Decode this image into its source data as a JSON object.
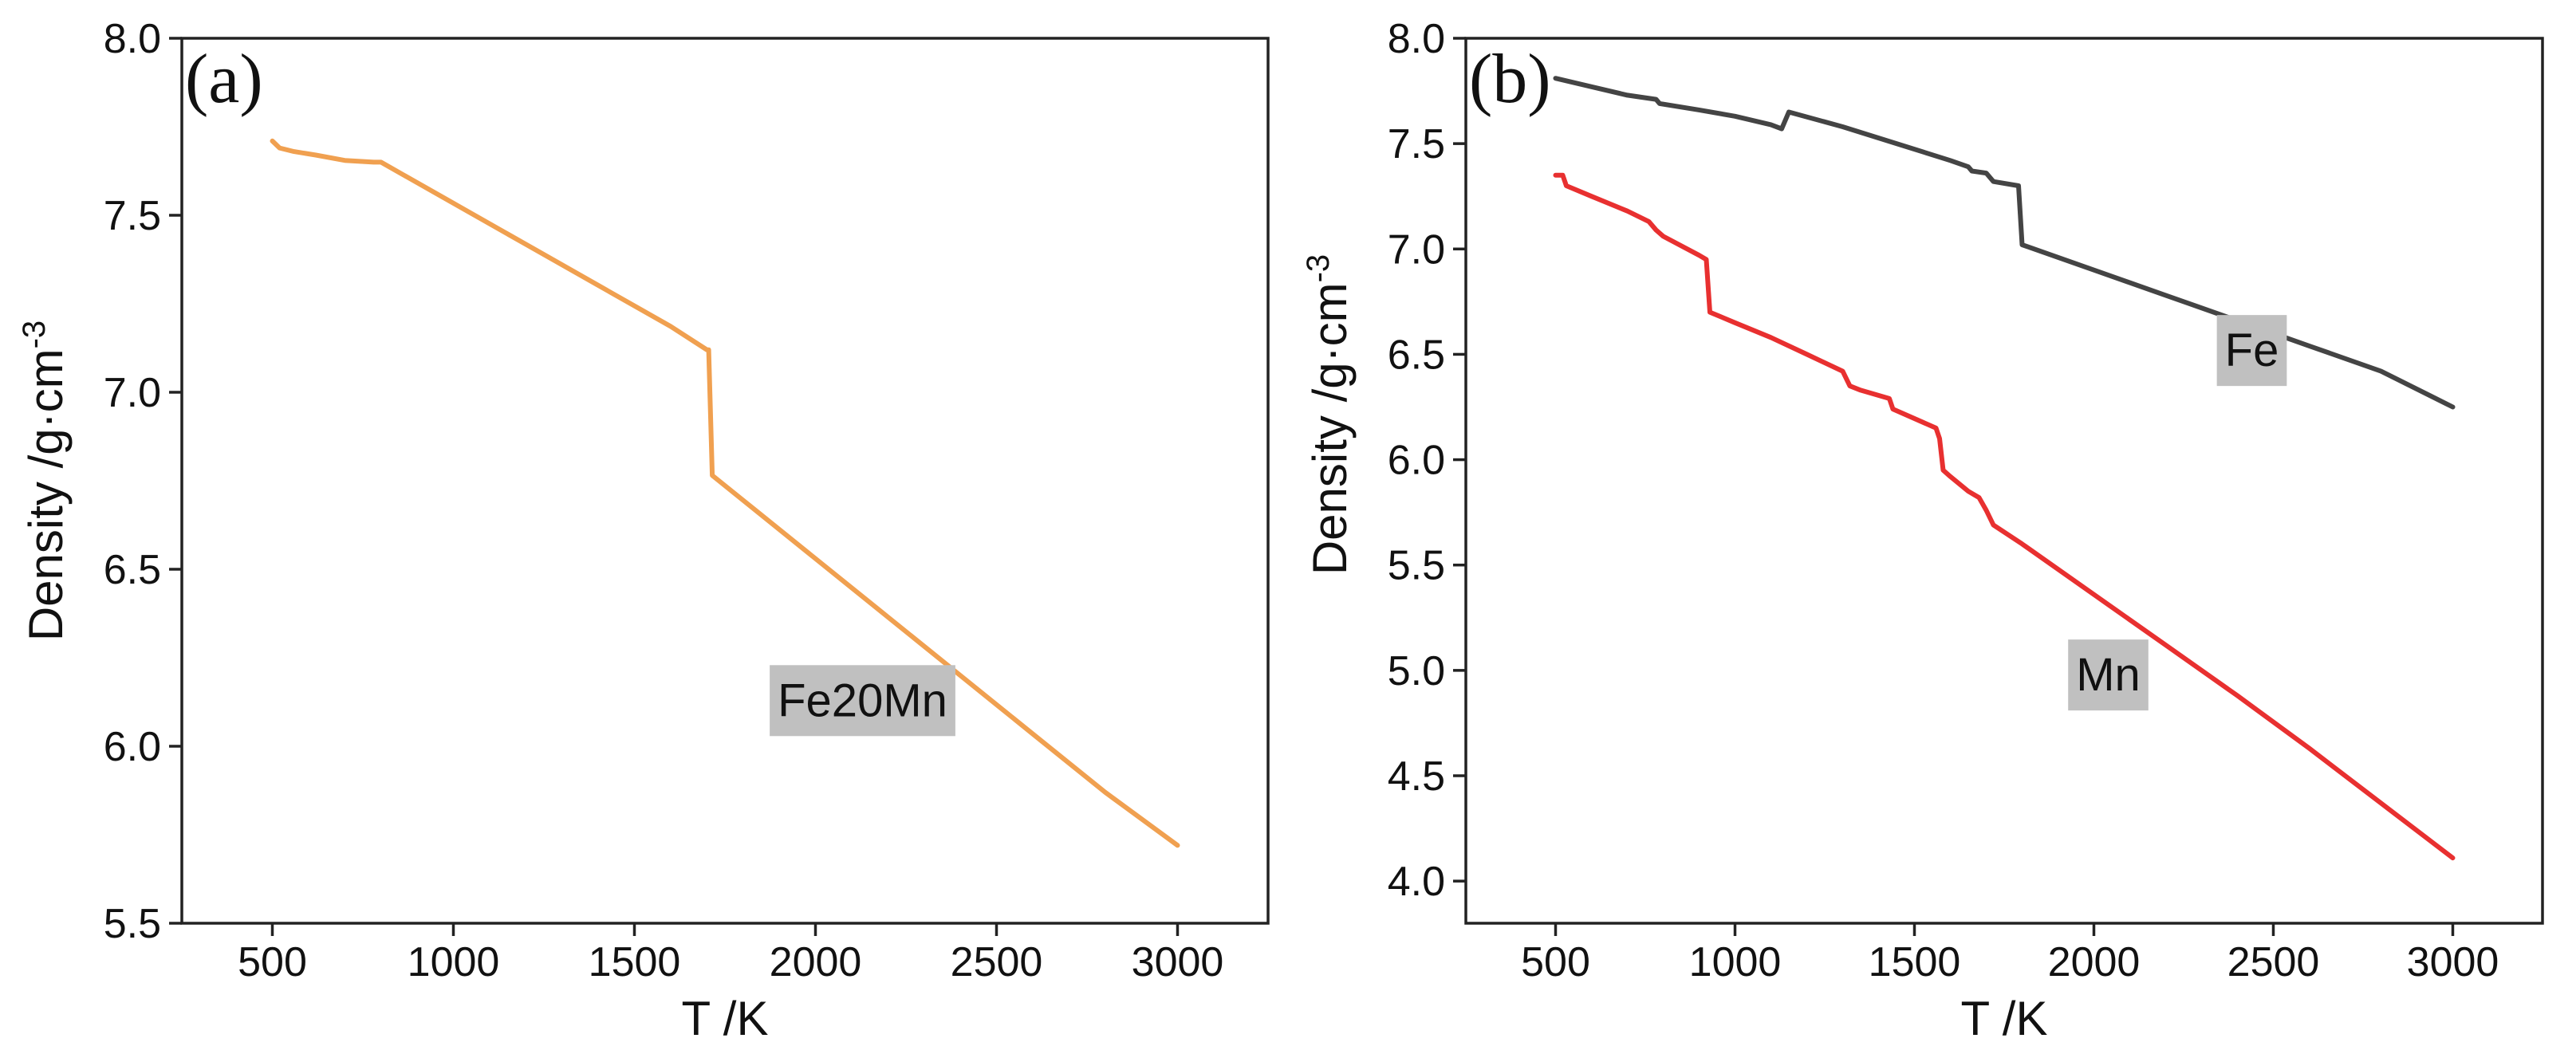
{
  "chart_data": [
    {
      "type": "line",
      "panel_label": "(a)",
      "xlabel": "T /K",
      "ylabel": "Density /g·cm",
      "ylabel_sup": "-3",
      "xlim": [
        250,
        3250
      ],
      "ylim": [
        5.5,
        8.0
      ],
      "xticks": [
        500,
        1000,
        1500,
        2000,
        2500,
        3000
      ],
      "yticks": [
        5.5,
        6.0,
        6.5,
        7.0,
        7.5,
        8.0
      ],
      "x_tick_labels": [
        "500",
        "1000",
        "1500",
        "2000",
        "2500",
        "3000"
      ],
      "y_tick_labels": [
        "5.5",
        "6.0",
        "6.5",
        "7.0",
        "7.5",
        "8.0"
      ],
      "series": [
        {
          "name": "Fe20Mn",
          "color": "#f0a050",
          "label_at": [
            2130,
            6.13
          ],
          "x": [
            500,
            520,
            560,
            620,
            700,
            780,
            800,
            1000,
            1200,
            1400,
            1600,
            1700,
            1705,
            1715,
            1800,
            2000,
            2200,
            2400,
            2600,
            2800,
            3000
          ],
          "y": [
            7.71,
            7.69,
            7.68,
            7.67,
            7.655,
            7.65,
            7.65,
            7.534,
            7.418,
            7.302,
            7.186,
            7.12,
            7.12,
            6.765,
            6.695,
            6.53,
            6.365,
            6.2,
            6.035,
            5.87,
            5.72
          ]
        }
      ]
    },
    {
      "type": "line",
      "panel_label": "(b)",
      "xlabel": "T /K",
      "ylabel": "Density /g·cm",
      "ylabel_sup": "-3",
      "xlim": [
        250,
        3250
      ],
      "ylim": [
        3.8,
        8.0
      ],
      "xticks": [
        500,
        1000,
        1500,
        2000,
        2500,
        3000
      ],
      "yticks": [
        4.0,
        4.5,
        5.0,
        5.5,
        6.0,
        6.5,
        7.0,
        7.5,
        8.0
      ],
      "x_tick_labels": [
        "500",
        "1000",
        "1500",
        "2000",
        "2500",
        "3000"
      ],
      "y_tick_labels": [
        "4.0",
        "4.5",
        "5.0",
        "5.5",
        "6.0",
        "6.5",
        "7.0",
        "7.5",
        "8.0"
      ],
      "series": [
        {
          "name": "Fe",
          "color": "#444444",
          "label_at": [
            2440,
            6.52
          ],
          "x": [
            500,
            600,
            700,
            780,
            790,
            900,
            1000,
            1100,
            1130,
            1150,
            1300,
            1450,
            1600,
            1650,
            1660,
            1700,
            1720,
            1790,
            1800,
            2000,
            2200,
            2400,
            2600,
            2800,
            3000
          ],
          "y": [
            7.81,
            7.77,
            7.73,
            7.71,
            7.69,
            7.66,
            7.63,
            7.59,
            7.57,
            7.65,
            7.58,
            7.5,
            7.42,
            7.39,
            7.37,
            7.36,
            7.32,
            7.3,
            7.02,
            6.9,
            6.78,
            6.66,
            6.54,
            6.42,
            6.25
          ]
        },
        {
          "name": "Mn",
          "color": "#e83030",
          "label_at": [
            2040,
            4.98
          ],
          "x": [
            500,
            520,
            530,
            600,
            700,
            760,
            780,
            800,
            900,
            920,
            930,
            1000,
            1100,
            1200,
            1300,
            1320,
            1350,
            1430,
            1440,
            1560,
            1570,
            1580,
            1600,
            1650,
            1680,
            1700,
            1720,
            1800,
            2000,
            2200,
            2400,
            2600,
            2800,
            3000
          ],
          "y": [
            7.35,
            7.35,
            7.3,
            7.25,
            7.18,
            7.13,
            7.09,
            7.06,
            6.97,
            6.95,
            6.7,
            6.65,
            6.58,
            6.5,
            6.42,
            6.35,
            6.33,
            6.29,
            6.24,
            6.15,
            6.1,
            5.95,
            5.92,
            5.85,
            5.82,
            5.76,
            5.69,
            5.6,
            5.36,
            5.12,
            4.88,
            4.63,
            4.37,
            4.11
          ]
        }
      ]
    }
  ]
}
